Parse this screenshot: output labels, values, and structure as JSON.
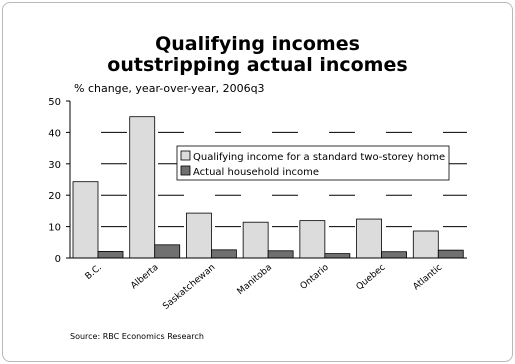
{
  "chart_data": {
    "type": "bar",
    "title": [
      "Qualifying incomes",
      "outstripping actual incomes"
    ],
    "subtitle": "% change, year-over-year, 2006q3",
    "categories": [
      "B.C.",
      "Alberta",
      "Saskatchewan",
      "Manitoba",
      "Ontario",
      "Quebec",
      "Atlantic"
    ],
    "series": [
      {
        "name": "Qualifying income for a standard two-storey home",
        "color": "#dcdcdc",
        "values": [
          24.3,
          45.0,
          14.3,
          11.4,
          11.9,
          12.4,
          8.6
        ]
      },
      {
        "name": "Actual household income",
        "color": "#707070",
        "values": [
          2.1,
          4.2,
          2.6,
          2.3,
          1.4,
          2.0,
          2.5
        ]
      }
    ],
    "ylim": [
      0,
      50
    ],
    "yticks": [
      "0",
      "10",
      "20",
      "30",
      "40",
      "50"
    ],
    "grid": true,
    "legend_position": "center-right"
  },
  "source": "Source:  RBC Economics Research"
}
